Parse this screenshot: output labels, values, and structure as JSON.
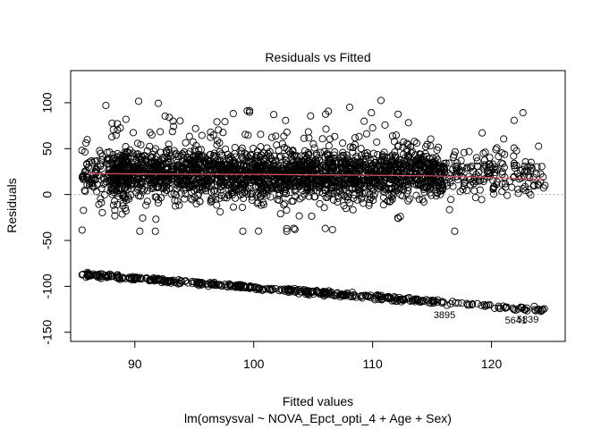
{
  "chart_data": {
    "type": "scatter",
    "title": "Residuals vs Fitted",
    "xlabel": "Fitted values",
    "ylabel": "Residuals",
    "subtitle": "lm(omsysval ~ NOVA_Epct_opti_4 + Age + Sex)",
    "xlim": [
      84.6,
      126.2
    ],
    "ylim": [
      -160,
      135
    ],
    "x_ticks": [
      90,
      100,
      110,
      120
    ],
    "y_ticks": [
      -150,
      -100,
      -50,
      0,
      50,
      100
    ],
    "reference_line": {
      "y": 0,
      "style": "dotted",
      "color": "#999999"
    },
    "smooth_line": {
      "color": "#df536b",
      "x": [
        86,
        90,
        95,
        100,
        105,
        110,
        115,
        120,
        124.5
      ],
      "y": [
        23,
        22.5,
        22.2,
        22,
        21.5,
        21,
        20.3,
        18.5,
        16.5
      ]
    },
    "upper_cluster": {
      "description_counts": 2600,
      "x_range": [
        85.5,
        124.5
      ],
      "center": 22,
      "spread_sd": 13,
      "min": -40,
      "max": 105
    },
    "lower_band": {
      "x_range": [
        85.5,
        124.5
      ],
      "line": {
        "x0": 85.5,
        "y0": -87,
        "x1": 124.5,
        "y1": -126
      }
    },
    "labeled_points": [
      {
        "label": "3895",
        "x": 116.5,
        "y": -121
      },
      {
        "label": "5641",
        "x": 122.5,
        "y": -127
      },
      {
        "label": "5839",
        "x": 123.5,
        "y": -126
      }
    ],
    "point_color": "#000000",
    "grid": false
  }
}
